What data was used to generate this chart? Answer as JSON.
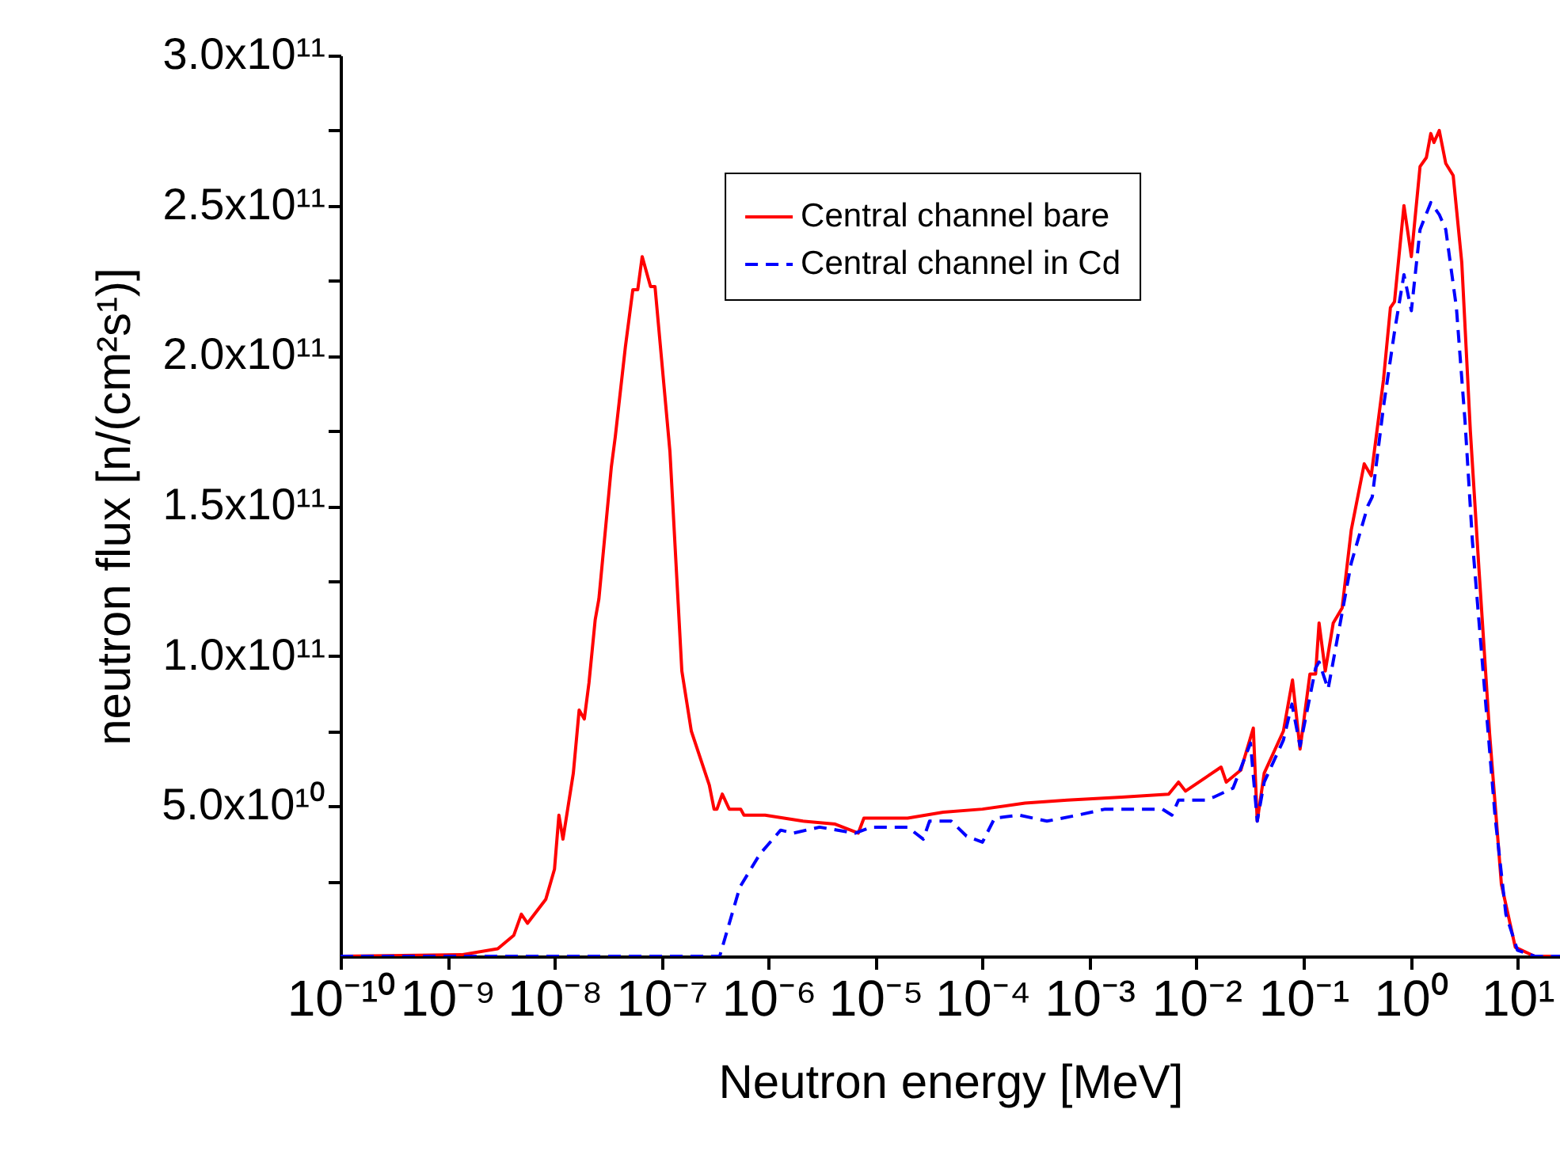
{
  "chart_data": {
    "type": "line",
    "xlabel": "Neutron energy [MeV]",
    "ylabel": "neutron flux [n/(cm²s¹)]",
    "log": "x",
    "xlim": [
      1e-10,
      25
    ],
    "ylim": [
      0,
      300000000000.0
    ],
    "xticks": [
      {
        "value": 1e-10,
        "label": "10⁻¹⁰"
      },
      {
        "value": 1e-09,
        "label": "10⁻⁹"
      },
      {
        "value": 1e-08,
        "label": "10⁻⁸"
      },
      {
        "value": 1e-07,
        "label": "10⁻⁷"
      },
      {
        "value": 1e-06,
        "label": "10⁻⁶"
      },
      {
        "value": 1e-05,
        "label": "10⁻⁵"
      },
      {
        "value": 0.0001,
        "label": "10⁻⁴"
      },
      {
        "value": 0.001,
        "label": "10⁻³"
      },
      {
        "value": 0.01,
        "label": "10⁻²"
      },
      {
        "value": 0.1,
        "label": "10⁻¹"
      },
      {
        "value": 1,
        "label": "10⁰"
      },
      {
        "value": 10,
        "label": "10¹"
      }
    ],
    "yticks": [
      {
        "value": 25000000000.0,
        "label": null
      },
      {
        "value": 50000000000.0,
        "label": "5.0x10¹⁰"
      },
      {
        "value": 75000000000.0,
        "label": null
      },
      {
        "value": 100000000000.0,
        "label": "1.0x10¹¹"
      },
      {
        "value": 125000000000.0,
        "label": null
      },
      {
        "value": 150000000000.0,
        "label": "1.5x10¹¹"
      },
      {
        "value": 175000000000.0,
        "label": null
      },
      {
        "value": 200000000000.0,
        "label": "2.0x10¹¹"
      },
      {
        "value": 225000000000.0,
        "label": null
      },
      {
        "value": 250000000000.0,
        "label": "2.5x10¹¹"
      },
      {
        "value": 275000000000.0,
        "label": null
      },
      {
        "value": 300000000000.0,
        "label": "3.0x10¹¹"
      }
    ],
    "grid": false,
    "legend": "top right",
    "series": [
      {
        "name": "Central channel bare",
        "color": "#ff0000",
        "line_style": "solid",
        "x": [
          1e-10,
          1.35e-09,
          2.95e-09,
          4.17e-09,
          4.9e-09,
          5.6e-09,
          8.3e-09,
          1e-08,
          1.1e-08,
          1.2e-08,
          1.5e-08,
          1.7e-08,
          1.9e-08,
          2.1e-08,
          2.4e-08,
          2.6e-08,
          3.4e-08,
          3.7e-08,
          4.6e-08,
          5.4e-08,
          6e-08,
          6.6e-08,
          7.9e-08,
          8.7e-08,
          1.2e-07,
          1.55e-07,
          1.9e-07,
          2.8e-07,
          3.1e-07,
          3.3e-07,
          3.7e-07,
          4.3e-07,
          5.5e-07,
          5.9e-07,
          9.3e-07,
          2.1e-06,
          4.2e-06,
          6.9e-06,
          7.8e-06,
          2e-05,
          4.3e-05,
          0.0001,
          0.00025,
          0.00062,
          0.002,
          0.0055,
          0.0068,
          0.0079,
          0.017,
          0.019,
          0.026,
          0.034,
          0.037,
          0.043,
          0.065,
          0.079,
          0.093,
          0.115,
          0.13,
          0.14,
          0.16,
          0.19,
          0.23,
          0.28,
          0.37,
          0.43,
          0.56,
          0.65,
          0.71,
          0.87,
          1.02,
          1.23,
          1.41,
          1.55,
          1.66,
          1.86,
          2.14,
          2.51,
          3.02,
          3.63,
          4.37,
          5.5,
          7.08,
          9.55,
          14.5,
          25
        ],
        "values": [
          0,
          500000000.0,
          2500000000.0,
          7000000000.0,
          14000000000.0,
          11000000000.0,
          19000000000.0,
          29000000000.0,
          47000000000.0,
          39000000000.0,
          61000000000.0,
          82000000000.0,
          79000000000.0,
          91000000000.0,
          112000000000.0,
          119000000000.0,
          163000000000.0,
          173000000000.0,
          203000000000.0,
          222000000000.0,
          222000000000.0,
          233000000000.0,
          223000000000.0,
          223000000000.0,
          168000000000.0,
          95000000000.0,
          75000000000.0,
          57000000000.0,
          49000000000.0,
          49000000000.0,
          54000000000.0,
          49000000000.0,
          49000000000.0,
          47000000000.0,
          47000000000.0,
          45000000000.0,
          44000000000.0,
          41000000000.0,
          46000000000.0,
          46000000000.0,
          48000000000.0,
          49000000000.0,
          51000000000.0,
          52000000000.0,
          53000000000.0,
          54000000000.0,
          58000000000.0,
          55000000000.0,
          63000000000.0,
          58000000000.0,
          62000000000.0,
          76000000000.0,
          45000000000.0,
          61000000000.0,
          75000000000.0,
          92000000000.0,
          69000000000.0,
          94000000000.0,
          94000000000.0,
          111000000000.0,
          95000000000.0,
          111000000000.0,
          116000000000.0,
          142000000000.0,
          164000000000.0,
          160000000000.0,
          192000000000.0,
          216000000000.0,
          218000000000.0,
          250000000000.0,
          233000000000.0,
          263000000000.0,
          266000000000.0,
          274000000000.0,
          271000000000.0,
          275000000000.0,
          264000000000.0,
          260000000000.0,
          231000000000.0,
          175000000000.0,
          129000000000.0,
          74000000000.0,
          24000000000.0,
          3000000000.0,
          0,
          0
        ]
      },
      {
        "name": "Central channel in Cd",
        "color": "#0000ff",
        "line_style": "dashed",
        "x": [
          1e-10,
          3.5e-07,
          5.4e-07,
          8.3e-07,
          1.3e-06,
          1.7e-06,
          3e-06,
          6.5e-06,
          9.1e-06,
          2e-05,
          2.8e-05,
          3.2e-05,
          5.1e-05,
          7.1e-05,
          0.0001,
          0.00013,
          0.00022,
          0.0004,
          0.00078,
          0.0014,
          0.0025,
          0.0048,
          0.0059,
          0.0068,
          0.012,
          0.0145,
          0.022,
          0.032,
          0.037,
          0.043,
          0.065,
          0.078,
          0.093,
          0.13,
          0.14,
          0.17,
          0.28,
          0.4,
          0.44,
          0.56,
          0.71,
          0.87,
          1.02,
          1.23,
          1.55,
          1.86,
          2.14,
          2.69,
          3.24,
          3.8,
          4.9,
          6.2,
          7.8,
          10,
          14.5,
          25
        ],
        "values": [
          0,
          0,
          23000000000.0,
          34000000000.0,
          42000000000.0,
          41000000000.0,
          43000000000.0,
          41000000000.0,
          43000000000.0,
          43000000000.0,
          39000000000.0,
          45000000000.0,
          45000000000.0,
          40000000000.0,
          38000000000.0,
          46000000000.0,
          47000000000.0,
          45000000000.0,
          47000000000.0,
          49000000000.0,
          49000000000.0,
          49000000000.0,
          47000000000.0,
          52000000000.0,
          52000000000.0,
          53000000000.0,
          56000000000.0,
          71000000000.0,
          45000000000.0,
          58000000000.0,
          72000000000.0,
          84000000000.0,
          70000000000.0,
          96000000000.0,
          98000000000.0,
          89000000000.0,
          131000000000.0,
          150000000000.0,
          153000000000.0,
          183000000000.0,
          208000000000.0,
          227000000000.0,
          215000000000.0,
          242000000000.0,
          251000000000.0,
          247000000000.0,
          242000000000.0,
          216000000000.0,
          178000000000.0,
          138000000000.0,
          90000000000.0,
          46000000000.0,
          14000000000.0,
          2000000000.0,
          0,
          0
        ]
      }
    ]
  }
}
